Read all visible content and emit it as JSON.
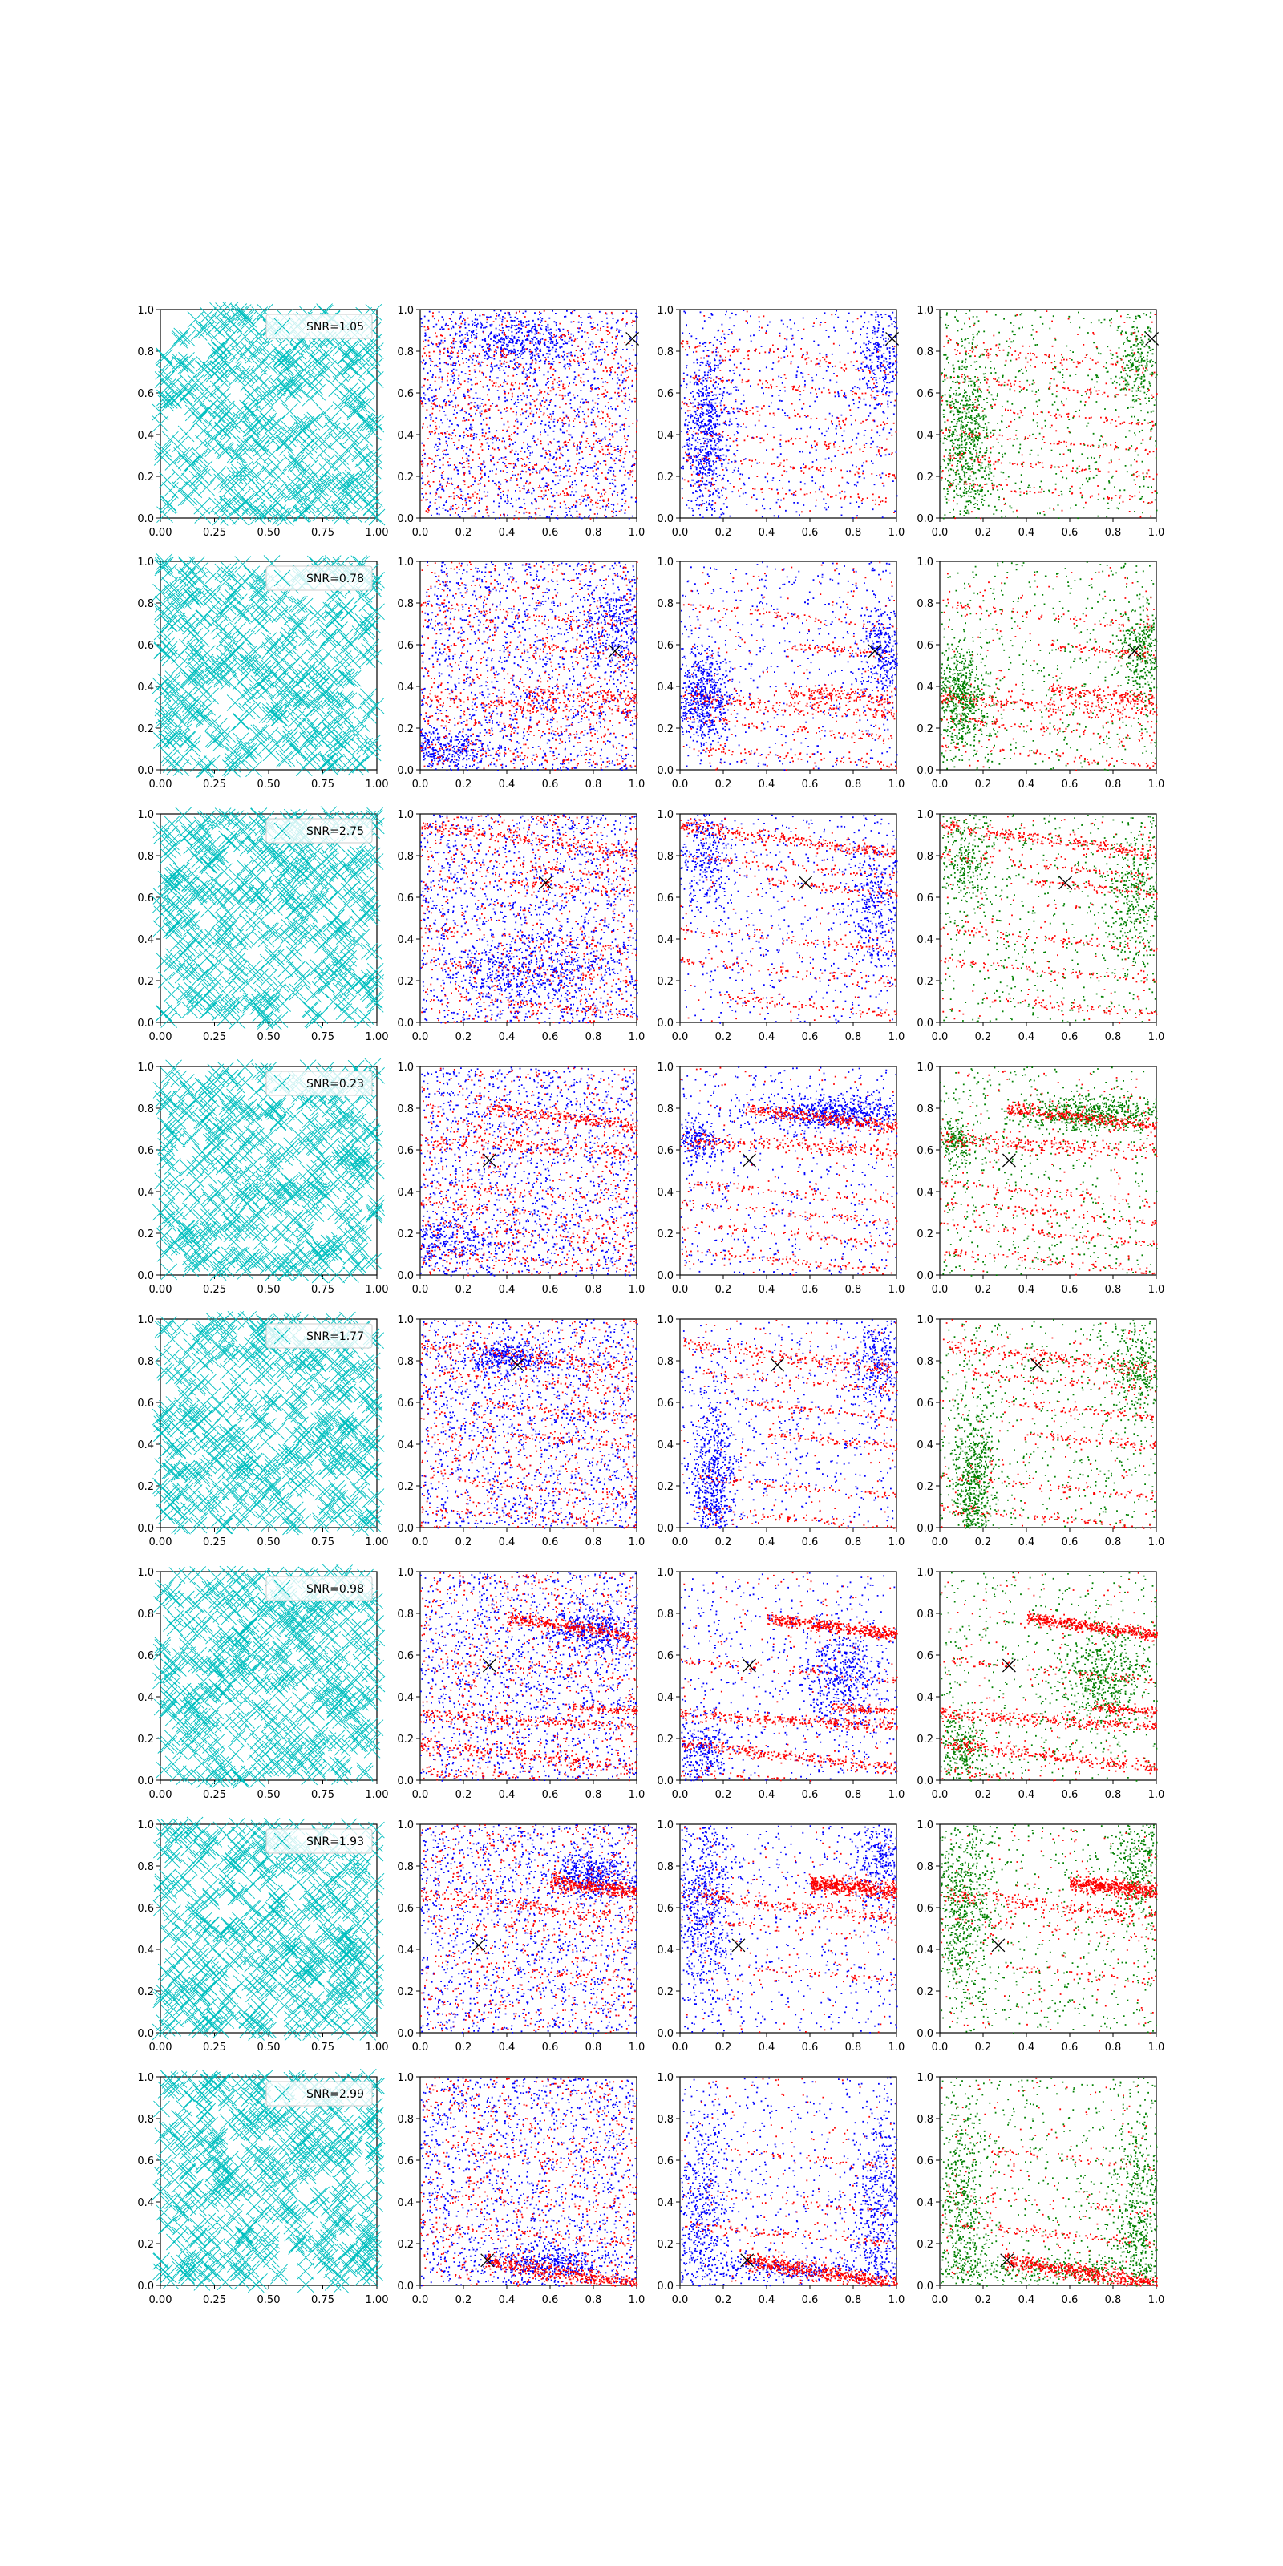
{
  "chart_data": {
    "type": "scatter",
    "layout": {
      "rows": 8,
      "cols": 4
    },
    "axis": {
      "xlim": [
        0,
        1
      ],
      "ylim": [
        0,
        1
      ],
      "xticks_col1": [
        "0.00",
        "0.25",
        "0.50",
        "0.75",
        "1.00"
      ],
      "xticks_other": [
        "0.0",
        "0.2",
        "0.4",
        "0.6",
        "0.8",
        "1.0"
      ],
      "yticks": [
        "0.0",
        "0.2",
        "0.4",
        "0.6",
        "0.8",
        "1.0"
      ],
      "grid": false
    },
    "colors": {
      "cyan": "#00bfbf",
      "red": "#ff0000",
      "blue": "#0000ff",
      "green": "#008000",
      "marker": "#000000"
    },
    "panels_per_row": [
      "cyan x-marker scatter with SNR legend",
      "blue + red scatter",
      "blue + red scatter",
      "green + red scatter"
    ],
    "rows": [
      {
        "snr_label": "SNR=1.05",
        "marker": [
          0.98,
          0.86
        ],
        "streaks": [
          [
            0.0,
            0.83,
            -0.12,
            0.02,
            80
          ],
          [
            0.0,
            0.68,
            -0.1,
            0.01,
            60
          ],
          [
            0.0,
            0.55,
            -0.1,
            0.01,
            60
          ],
          [
            0.0,
            0.42,
            -0.1,
            0.01,
            60
          ],
          [
            0.0,
            0.3,
            -0.1,
            0.01,
            60
          ],
          [
            0.0,
            0.18,
            -0.1,
            0.01,
            50
          ]
        ],
        "clusters_mid": [
          [
            0.45,
            0.85,
            0.15,
            0.06,
            400
          ]
        ],
        "clusters_right": [
          [
            0.12,
            0.4,
            0.06,
            0.22,
            700
          ],
          [
            0.92,
            0.75,
            0.05,
            0.12,
            250
          ]
        ]
      },
      {
        "snr_label": "SNR=0.78",
        "marker": [
          0.9,
          0.57
        ],
        "streaks": [
          [
            0.0,
            0.8,
            -0.12,
            0.01,
            60
          ],
          [
            0.5,
            0.6,
            -0.1,
            0.01,
            60
          ],
          [
            0.0,
            0.35,
            -0.08,
            0.02,
            180
          ],
          [
            0.5,
            0.38,
            -0.08,
            0.02,
            150
          ],
          [
            0.0,
            0.25,
            -0.1,
            0.01,
            70
          ],
          [
            0.0,
            0.12,
            -0.1,
            0.01,
            60
          ]
        ],
        "clusters_mid": [
          [
            0.1,
            0.1,
            0.1,
            0.05,
            300
          ],
          [
            0.9,
            0.7,
            0.08,
            0.1,
            300
          ]
        ],
        "clusters_right": [
          [
            0.1,
            0.35,
            0.06,
            0.12,
            600
          ],
          [
            0.93,
            0.57,
            0.05,
            0.12,
            300
          ]
        ]
      },
      {
        "snr_label": "SNR=2.75",
        "marker": [
          0.58,
          0.67
        ],
        "streaks": [
          [
            0.0,
            0.95,
            -0.14,
            0.015,
            250
          ],
          [
            0.0,
            0.8,
            -0.1,
            0.01,
            70
          ],
          [
            0.4,
            0.68,
            -0.1,
            0.01,
            70
          ],
          [
            0.0,
            0.45,
            -0.1,
            0.01,
            70
          ],
          [
            0.0,
            0.3,
            -0.1,
            0.01,
            70
          ],
          [
            0.2,
            0.12,
            -0.1,
            0.01,
            70
          ]
        ],
        "clusters_mid": [
          [
            0.5,
            0.25,
            0.2,
            0.08,
            500
          ]
        ],
        "clusters_right": [
          [
            0.12,
            0.8,
            0.06,
            0.15,
            300
          ],
          [
            0.9,
            0.6,
            0.07,
            0.18,
            350
          ]
        ]
      },
      {
        "snr_label": "SNR=0.23",
        "marker": [
          0.32,
          0.55
        ],
        "streaks": [
          [
            0.3,
            0.8,
            -0.12,
            0.015,
            300
          ],
          [
            0.0,
            0.65,
            -0.05,
            0.02,
            200
          ],
          [
            0.0,
            0.45,
            -0.1,
            0.01,
            70
          ],
          [
            0.0,
            0.35,
            -0.1,
            0.01,
            70
          ],
          [
            0.0,
            0.25,
            -0.1,
            0.01,
            70
          ],
          [
            0.0,
            0.12,
            -0.1,
            0.01,
            70
          ]
        ],
        "clusters_mid": [
          [
            0.1,
            0.15,
            0.15,
            0.05,
            300
          ]
        ],
        "clusters_right": [
          [
            0.7,
            0.78,
            0.18,
            0.04,
            600
          ],
          [
            0.08,
            0.65,
            0.05,
            0.05,
            200
          ]
        ]
      },
      {
        "snr_label": "SNR=1.77",
        "marker": [
          0.45,
          0.78
        ],
        "streaks": [
          [
            0.0,
            0.88,
            -0.12,
            0.02,
            180
          ],
          [
            0.1,
            0.75,
            -0.1,
            0.01,
            70
          ],
          [
            0.3,
            0.6,
            -0.1,
            0.01,
            70
          ],
          [
            0.4,
            0.45,
            -0.1,
            0.01,
            70
          ],
          [
            0.0,
            0.25,
            -0.1,
            0.01,
            70
          ],
          [
            0.0,
            0.1,
            -0.1,
            0.01,
            70
          ]
        ],
        "clusters_mid": [
          [
            0.4,
            0.82,
            0.1,
            0.04,
            350
          ]
        ],
        "clusters_right": [
          [
            0.15,
            0.2,
            0.05,
            0.2,
            700
          ],
          [
            0.9,
            0.78,
            0.06,
            0.12,
            300
          ]
        ]
      },
      {
        "snr_label": "SNR=0.98",
        "marker": [
          0.32,
          0.55
        ],
        "streaks": [
          [
            0.4,
            0.78,
            -0.14,
            0.015,
            400
          ],
          [
            0.0,
            0.58,
            -0.1,
            0.01,
            70
          ],
          [
            0.0,
            0.32,
            -0.06,
            0.015,
            250
          ],
          [
            0.7,
            0.35,
            -0.06,
            0.01,
            100
          ],
          [
            0.0,
            0.18,
            -0.12,
            0.015,
            250
          ],
          [
            0.0,
            0.05,
            -0.1,
            0.01,
            70
          ]
        ],
        "clusters_mid": [
          [
            0.8,
            0.72,
            0.12,
            0.06,
            400
          ]
        ],
        "clusters_right": [
          [
            0.75,
            0.5,
            0.1,
            0.12,
            500
          ],
          [
            0.1,
            0.15,
            0.05,
            0.08,
            250
          ]
        ]
      },
      {
        "snr_label": "SNR=1.93",
        "marker": [
          0.27,
          0.42
        ],
        "streaks": [
          [
            0.0,
            0.67,
            -0.12,
            0.02,
            200
          ],
          [
            0.6,
            0.72,
            -0.1,
            0.02,
            450
          ],
          [
            0.0,
            0.55,
            -0.1,
            0.01,
            40
          ],
          [
            0.3,
            0.32,
            -0.1,
            0.01,
            40
          ]
        ],
        "clusters_mid": [
          [
            0.8,
            0.75,
            0.1,
            0.05,
            400
          ]
        ],
        "clusters_right": [
          [
            0.1,
            0.6,
            0.08,
            0.25,
            700
          ],
          [
            0.92,
            0.82,
            0.06,
            0.12,
            300
          ]
        ]
      },
      {
        "snr_label": "SNR=2.99",
        "marker": [
          0.31,
          0.12
        ],
        "streaks": [
          [
            0.3,
            0.12,
            -0.16,
            0.02,
            500
          ],
          [
            0.0,
            0.3,
            -0.1,
            0.01,
            80
          ],
          [
            0.0,
            0.45,
            -0.1,
            0.01,
            40
          ],
          [
            0.2,
            0.65,
            -0.1,
            0.01,
            40
          ]
        ],
        "clusters_mid": [
          [
            0.6,
            0.1,
            0.15,
            0.04,
            350
          ]
        ],
        "clusters_right": [
          [
            0.1,
            0.35,
            0.06,
            0.25,
            500
          ],
          [
            0.92,
            0.35,
            0.06,
            0.25,
            500
          ],
          [
            0.5,
            0.08,
            0.3,
            0.03,
            300
          ]
        ]
      }
    ]
  }
}
